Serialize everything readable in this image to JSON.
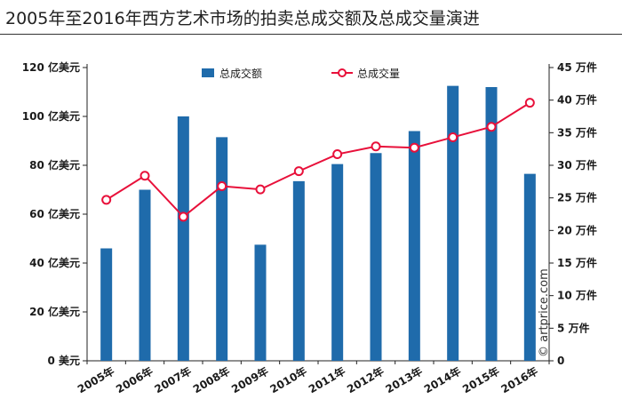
{
  "title": "2005年至2016年西方艺术市场的拍卖总成交额及总成交量演进",
  "watermark": "© artprice.com",
  "colors": {
    "bar": "#1f6bab",
    "line": "#e8103a",
    "axis": "#222222"
  },
  "chart_data": {
    "type": "bar+line",
    "categories": [
      "2005年",
      "2006年",
      "2007年",
      "2008年",
      "2009年",
      "2010年",
      "2011年",
      "2012年",
      "2013年",
      "2014年",
      "2015年",
      "2016年"
    ],
    "series": [
      {
        "name": "总成交额",
        "type": "bar",
        "axis": "left",
        "values": [
          46,
          70,
          100,
          91.5,
          47.5,
          73.5,
          80.5,
          85,
          94,
          112.5,
          112,
          76.5
        ]
      },
      {
        "name": "总成交量",
        "type": "line",
        "axis": "right",
        "values": [
          24.7,
          28.4,
          22.1,
          26.8,
          26.3,
          29.1,
          31.7,
          32.9,
          32.7,
          34.3,
          35.9,
          39.6
        ]
      }
    ],
    "left_axis": {
      "ylim": [
        0,
        120
      ],
      "ticks": [
        0,
        20,
        40,
        60,
        80,
        100,
        120
      ],
      "tick_labels": [
        "0 美元",
        "20 亿美元",
        "40 亿美元",
        "60 亿美元",
        "80 亿美元",
        "100 亿美元",
        "120 亿美元"
      ]
    },
    "right_axis": {
      "ylim": [
        0,
        45
      ],
      "ticks": [
        0,
        5,
        10,
        15,
        20,
        25,
        30,
        35,
        40,
        45
      ],
      "tick_labels": [
        "0",
        "5 万件",
        "10 万件",
        "15 万件",
        "20 万件",
        "25 万件",
        "30 万件",
        "35 万件",
        "40 万件",
        "45 万件"
      ]
    },
    "grid": false,
    "legend": {
      "position": "top-center"
    }
  }
}
